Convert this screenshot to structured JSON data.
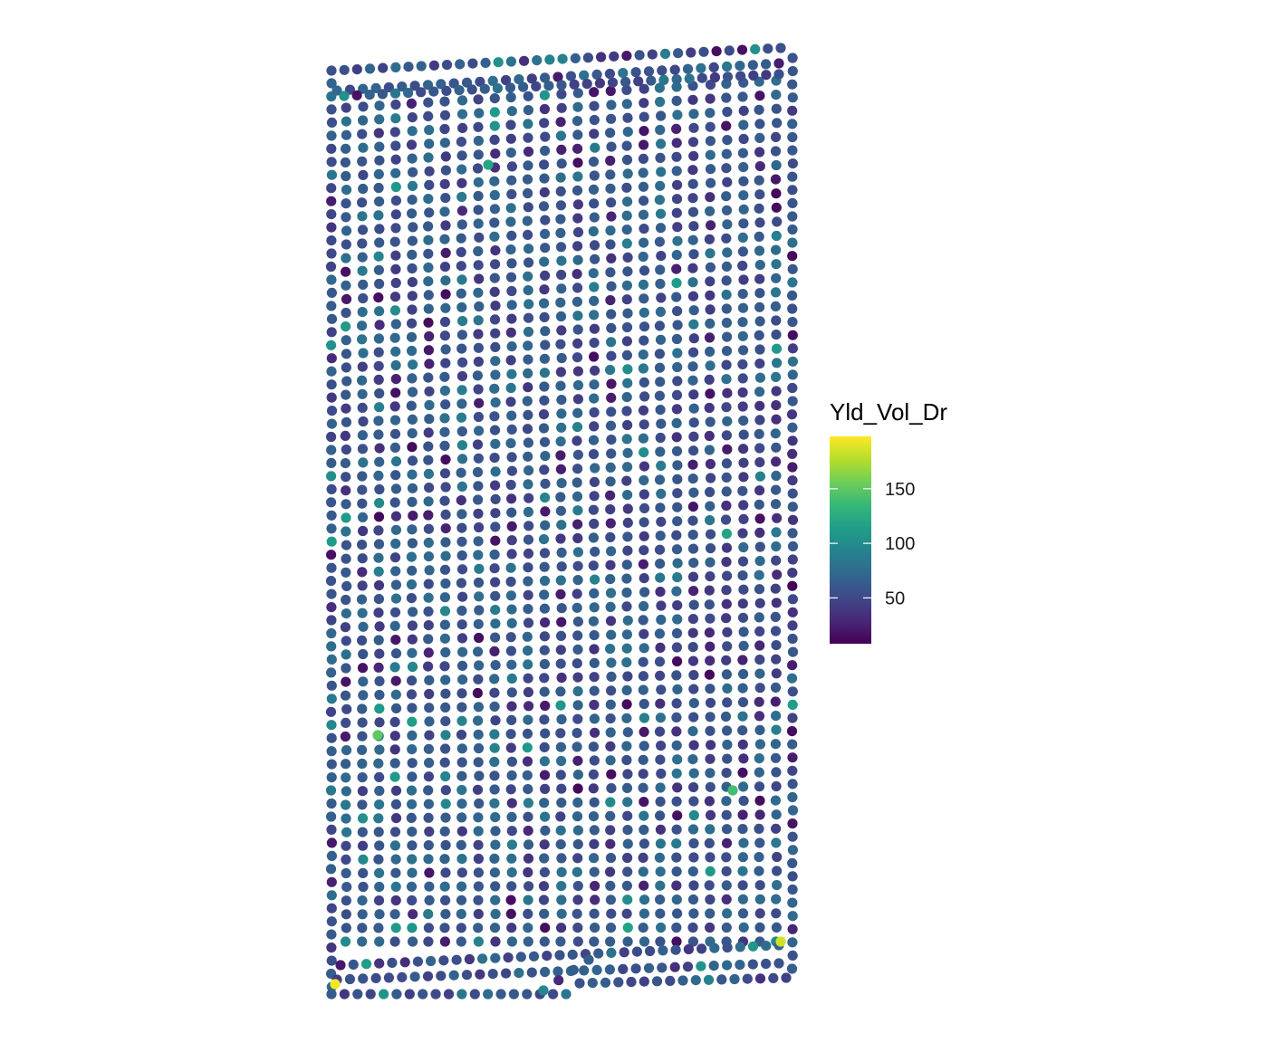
{
  "chart_data": {
    "type": "scatter",
    "title": "",
    "xlabel": "",
    "ylabel": "",
    "grid": false,
    "axes_visible": false,
    "color_variable": "Yld_Vol_Dr",
    "legend": {
      "title": "Yld_Vol_Dr",
      "placement": "right",
      "type": "continuous-colorbar",
      "palette": "viridis",
      "range": [
        8,
        198
      ],
      "ticks": [
        {
          "value": 50,
          "label": "50"
        },
        {
          "value": 100,
          "label": "100"
        },
        {
          "value": 150,
          "label": "150"
        }
      ]
    },
    "palette_stops": [
      "#440154",
      "#482878",
      "#3e4989",
      "#31688e",
      "#26828e",
      "#1f9e89",
      "#35b779",
      "#6ece58",
      "#b5de2b",
      "#fde725"
    ],
    "field": {
      "pass_count": 27,
      "points_per_pass": 62,
      "typical_value": 60,
      "value_range": [
        8,
        198
      ],
      "notes_low": "Lower values concentrated near east edge and mid-south",
      "notes_high": "Isolated high values near southwest and southeast corners"
    }
  }
}
